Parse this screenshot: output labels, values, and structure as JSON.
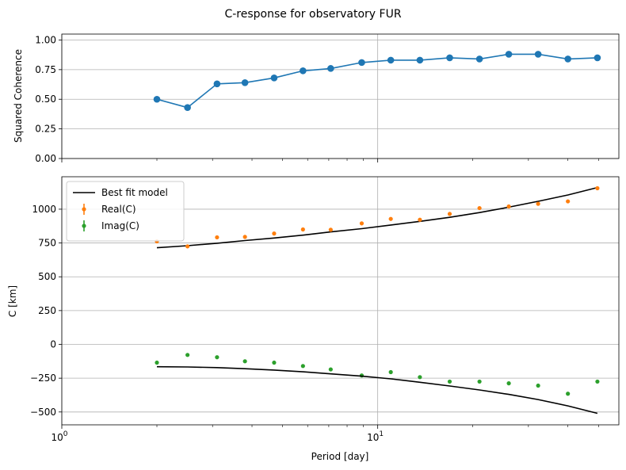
{
  "chart_data": {
    "title": "C-response for observatory FUR",
    "type": "line",
    "xscale": "log",
    "xlabel": "Period [day]",
    "xlim": [
      1,
      58
    ],
    "x_tick_labels": [
      {
        "value": 1,
        "base": "10",
        "exp": "0"
      },
      {
        "value": 10,
        "base": "10",
        "exp": "1"
      }
    ],
    "x": [
      2.0,
      2.5,
      3.1,
      3.8,
      4.7,
      5.8,
      7.1,
      8.9,
      11.0,
      13.6,
      16.9,
      21.0,
      26.0,
      32.2,
      40.0,
      49.6
    ],
    "panels": [
      {
        "id": "coherence",
        "ylabel": "Squared Coherence",
        "ylim": [
          0.0,
          1.05
        ],
        "yticks": [
          0.0,
          0.25,
          0.5,
          0.75,
          1.0
        ],
        "ytick_labels": [
          "0.00",
          "0.25",
          "0.50",
          "0.75",
          "1.00"
        ],
        "grid": true,
        "series": [
          {
            "name": "",
            "color": "#1f77b4",
            "style": "line-marker",
            "values": [
              0.5,
              0.43,
              0.63,
              0.64,
              0.68,
              0.74,
              0.76,
              0.81,
              0.83,
              0.83,
              0.85,
              0.84,
              0.88,
              0.88,
              0.84,
              0.85
            ]
          }
        ]
      },
      {
        "id": "c-response",
        "ylabel": "C [km]",
        "ylim": [
          -595,
          1240
        ],
        "yticks": [
          -500,
          -250,
          0,
          250,
          500,
          750,
          1000
        ],
        "ytick_labels": [
          "−500",
          "−250",
          "0",
          "250",
          "500",
          "750",
          "1000"
        ],
        "grid": true,
        "legend_position": "upper-left",
        "series": [
          {
            "name": "Best fit model",
            "color": "#000000",
            "style": "line",
            "values": [
              715,
              730,
              748,
              768,
              787,
              808,
              832,
              856,
              883,
              910,
              940,
              975,
              1015,
              1058,
              1105,
              1160
            ]
          },
          {
            "name": "Real(C)",
            "color": "#ff7f0e",
            "style": "errorbar",
            "values": [
              762,
              725,
              792,
              795,
              820,
              850,
              848,
              895,
              928,
              922,
              965,
              1008,
              1020,
              1040,
              1058,
              1155
            ]
          },
          {
            "name": "Imag(C)",
            "color": "#2ca02c",
            "style": "errorbar",
            "values": [
              -135,
              -78,
              -95,
              -125,
              -135,
              -160,
              -185,
              -230,
              -205,
              -242,
              -275,
              -275,
              -288,
              -305,
              -365,
              -275
            ]
          },
          {
            "name": "",
            "color": "#000000",
            "style": "line",
            "values": [
              -165,
              -167,
              -172,
              -180,
              -190,
              -203,
              -218,
              -235,
              -255,
              -280,
              -308,
              -337,
              -370,
              -408,
              -455,
              -510
            ]
          }
        ]
      }
    ]
  }
}
